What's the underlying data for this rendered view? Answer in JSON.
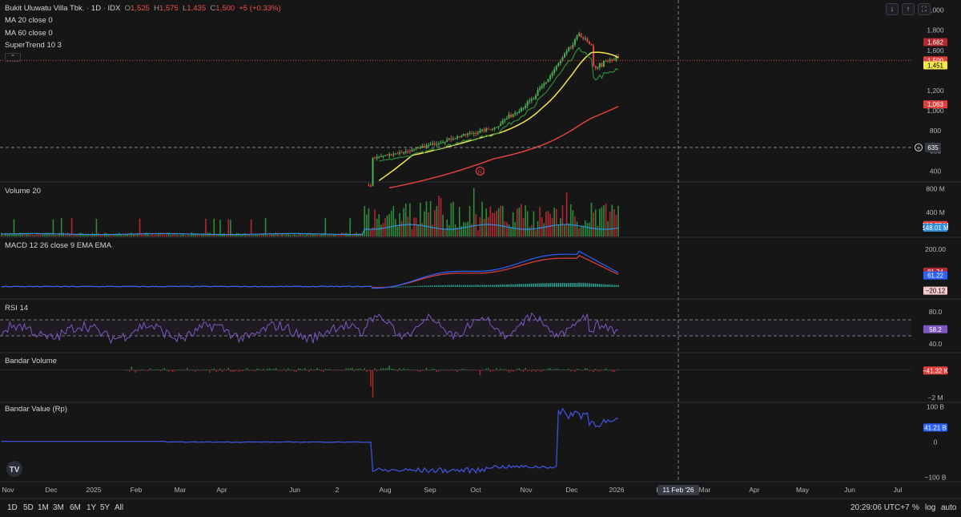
{
  "header": {
    "symbol": "Bukit Uluwatu Villa Tbk.",
    "interval": "1D",
    "exchange": "IDX",
    "o_label": "O",
    "o": "1,525",
    "h_label": "H",
    "h": "1,575",
    "l_label": "L",
    "l": "1,435",
    "c_label": "C",
    "c": "1,500",
    "change": "+5 (+0.33%)"
  },
  "indicators": {
    "ma20": "MA 20 close 0",
    "ma60": "MA 60 close 0",
    "supertrend": "SuperTrend 10 3",
    "volume": "Volume 20",
    "macd": "MACD 12 26 close 9 EMA EMA",
    "rsi": "RSI 14",
    "bandar_volume": "Bandar Volume",
    "bandar_value": "Bandar Value (Rp)"
  },
  "toolbar_icons": [
    "arrow-down-icon",
    "arrow-up-icon",
    "fullscreen-icon"
  ],
  "chart_data": [
    {
      "type": "candlestick",
      "name": "price",
      "y_ticks": [
        "2,000",
        "1,800",
        "1,600",
        "1,200",
        "1,000",
        "800",
        "600",
        "400"
      ],
      "ylim": [
        300,
        2100
      ],
      "badges": [
        {
          "label": "1,682",
          "value": 1682,
          "color": "#b22833"
        },
        {
          "label": "1,500",
          "value": 1500,
          "color": "#e0413c"
        },
        {
          "label": "1,451",
          "value": 1451,
          "color": "#f5e64a"
        },
        {
          "label": "1,063",
          "value": 1063,
          "color": "#e0413c"
        }
      ],
      "crosshair_label": "635",
      "crosshair_value": 635,
      "last_close": 1500,
      "series": [
        {
          "name": "MA 20",
          "color": "#f5e64a"
        },
        {
          "name": "MA 60",
          "color": "#e0413c"
        },
        {
          "name": "SuperTrend",
          "colors": [
            "#2e8b3a",
            "#c0282d"
          ]
        }
      ],
      "marker": "R"
    },
    {
      "type": "bar",
      "name": "volume",
      "y_ticks": [
        "800 M",
        "400 M"
      ],
      "ylim": [
        0,
        900
      ],
      "badges": [
        {
          "label": "190.97 M",
          "value": 191,
          "color": "#e0413c"
        },
        {
          "label": "148.01 M",
          "value": 148,
          "color": "#2f8fe0"
        }
      ]
    },
    {
      "type": "line",
      "name": "macd",
      "y_ticks": [
        "200.00"
      ],
      "ylim": [
        -60,
        260
      ],
      "badges": [
        {
          "label": "81.34",
          "value": 81.34,
          "color": "#b22833"
        },
        {
          "label": "61.22",
          "value": 61.22,
          "color": "#2962ff"
        },
        {
          "label": "−20.12",
          "value": -20.12,
          "color": "#f7c9cc"
        }
      ]
    },
    {
      "type": "line",
      "name": "rsi",
      "y_ticks": [
        "80.0",
        "40.0"
      ],
      "ylim": [
        30,
        95
      ],
      "bands": [
        70,
        50
      ],
      "badges": [
        {
          "label": "58.2",
          "value": 58.2,
          "color": "#7e57c2"
        }
      ]
    },
    {
      "type": "bar",
      "name": "bandar_volume",
      "y_ticks": [
        "−2 M"
      ],
      "ylim": [
        -2.3,
        1.2
      ],
      "badges": [
        {
          "label": "−41.32 K",
          "value": -0.04,
          "color": "#e0413c"
        }
      ]
    },
    {
      "type": "line",
      "name": "bandar_value",
      "y_ticks": [
        "100 B",
        "0",
        "−100 B"
      ],
      "ylim": [
        -110,
        110
      ],
      "badges": [
        {
          "label": "41.21 B",
          "value": 41.21,
          "color": "#2962ff"
        }
      ]
    }
  ],
  "x_axis": {
    "labels": [
      "Nov",
      "Dec",
      "2025",
      "Feb",
      "Mar",
      "Apr",
      "Jun",
      "2",
      "Aug",
      "Sep",
      "Oct",
      "Nov",
      "Dec",
      "2026",
      "F",
      "Mar",
      "Apr",
      "May",
      "Jun",
      "Jul"
    ],
    "cursor_label": "11 Feb '26"
  },
  "timeframes": [
    "1D",
    "5D",
    "1M",
    "3M",
    "6M",
    "1Y",
    "5Y",
    "All"
  ],
  "footer": {
    "time": "20:29:06 UTC+7",
    "percent": "%",
    "log": "log",
    "auto": "auto"
  }
}
